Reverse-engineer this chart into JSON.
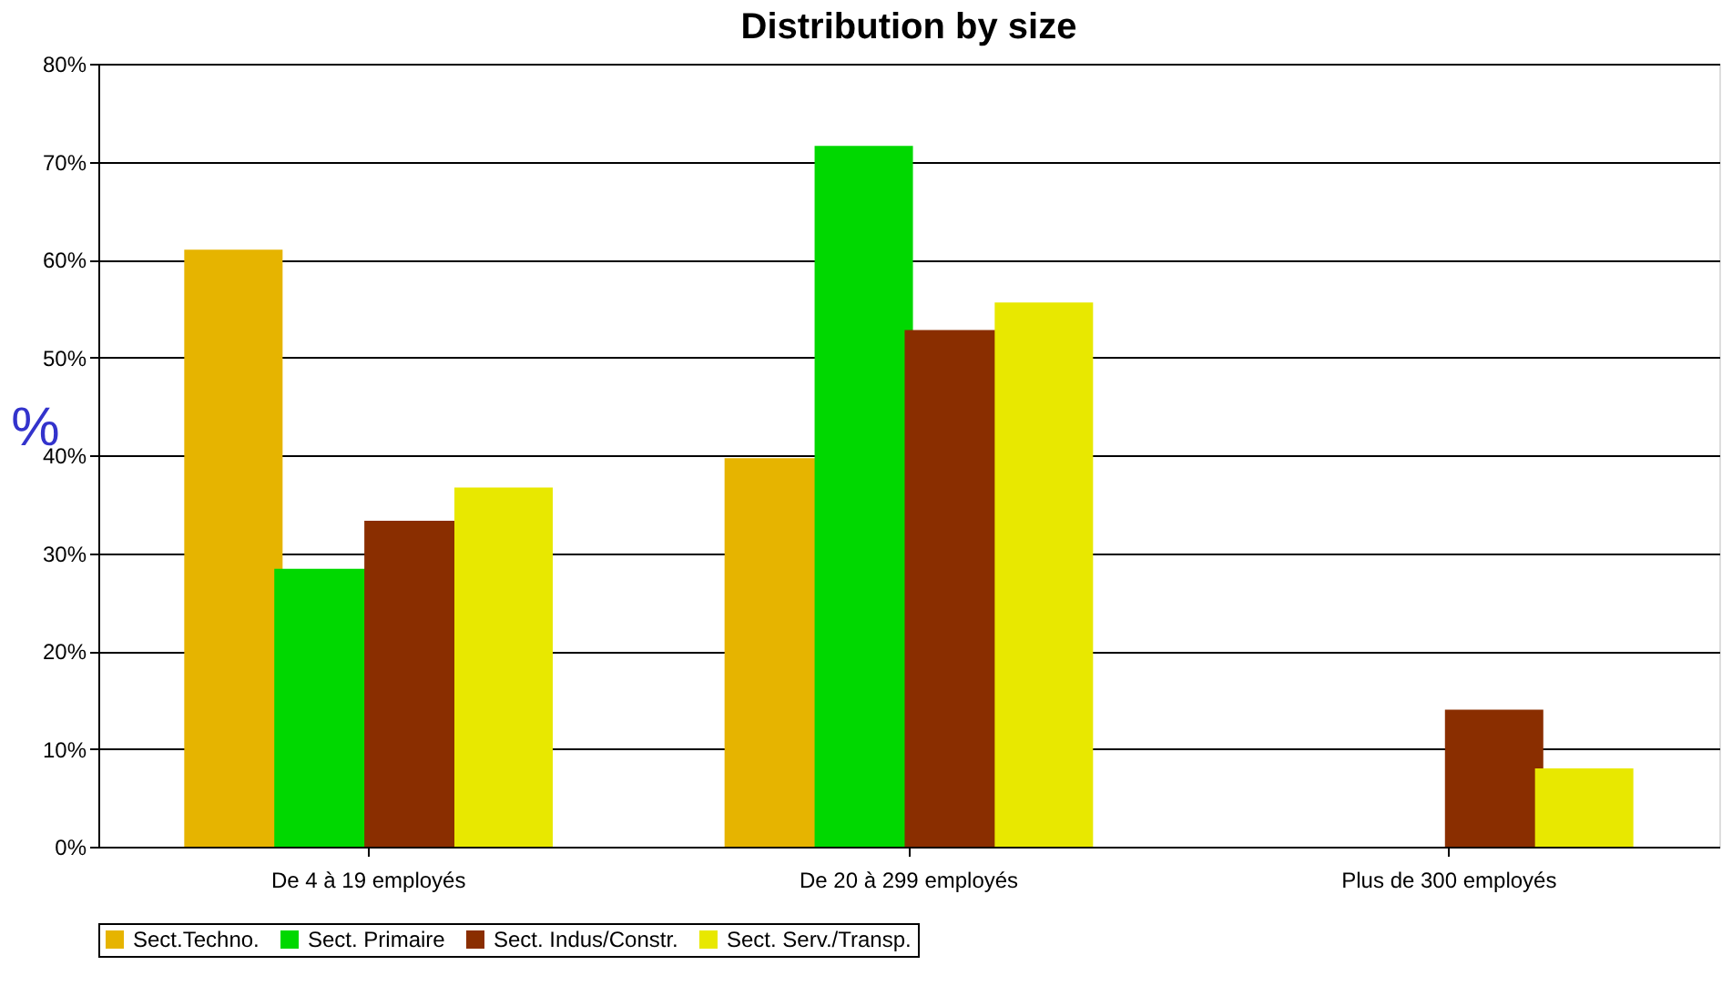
{
  "chart_data": {
    "type": "bar",
    "title": "Distribution by size",
    "ylabel": "%",
    "categories": [
      "De 4 à 19 employés",
      "De 20 à 299 employés",
      "Plus de 300 employés"
    ],
    "series": [
      {
        "name": "Sect.Techno.",
        "color": "#e6b400",
        "values": [
          61,
          39.7,
          null
        ]
      },
      {
        "name": "Sect. Primaire",
        "color": "#00d800",
        "values": [
          28.4,
          71.6,
          null
        ]
      },
      {
        "name": "Sect. Indus/Constr.",
        "color": "#8a2e00",
        "values": [
          33.3,
          52.8,
          14.0
        ]
      },
      {
        "name": "Sect. Serv./Transp.",
        "color": "#e8e800",
        "values": [
          36.7,
          55.6,
          8.0
        ]
      }
    ],
    "ylim": [
      0,
      80
    ],
    "yticks": [
      {
        "value": 0,
        "label": "0%"
      },
      {
        "value": 10,
        "label": "10%"
      },
      {
        "value": 20,
        "label": "20%"
      },
      {
        "value": 30,
        "label": "30%"
      },
      {
        "value": 40,
        "label": "40%"
      },
      {
        "value": 50,
        "label": "50%"
      },
      {
        "value": 60,
        "label": "60%"
      },
      {
        "value": 70,
        "label": "70%"
      },
      {
        "value": 80,
        "label": "80%"
      }
    ],
    "grid": "y",
    "legend": "bottom"
  }
}
